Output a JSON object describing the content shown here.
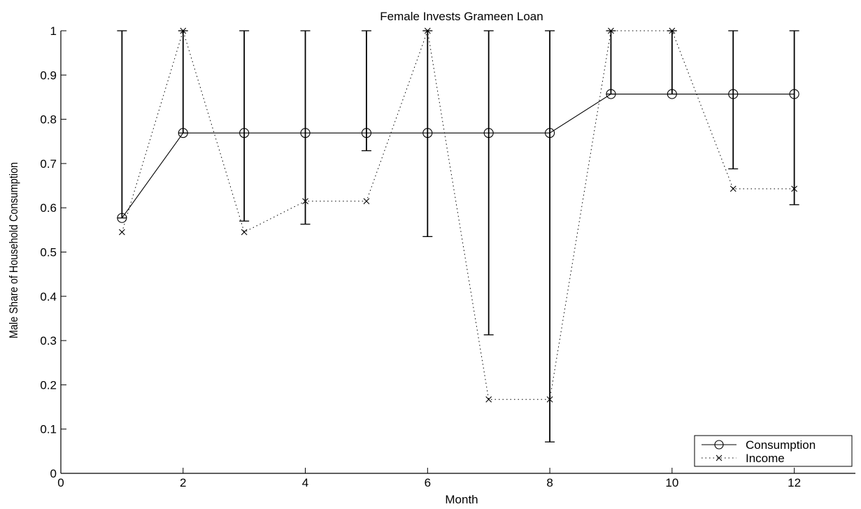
{
  "chart_data": {
    "type": "line",
    "title": "Female Invests Grameen Loan",
    "xlabel": "Month",
    "ylabel": "Male Share of Household Consumption",
    "xlim": [
      0,
      13
    ],
    "ylim": [
      0,
      1
    ],
    "xticks": [
      0,
      2,
      4,
      6,
      8,
      10,
      12
    ],
    "yticks": [
      0,
      0.1,
      0.2,
      0.3,
      0.4,
      0.5,
      0.6,
      0.7,
      0.8,
      0.9,
      1
    ],
    "xtick_labels": [
      "0",
      "2",
      "4",
      "6",
      "8",
      "10",
      "12"
    ],
    "ytick_labels": [
      "0",
      "0.1",
      "0.2",
      "0.3",
      "0.4",
      "0.5",
      "0.6",
      "0.7",
      "0.8",
      "0.9",
      "1"
    ],
    "grid": false,
    "legend_position": "bottom-right",
    "series": [
      {
        "name": "Consumption",
        "style": "solid",
        "marker": "circle",
        "color": "#000000",
        "x": [
          1,
          2,
          3,
          4,
          5,
          6,
          7,
          8,
          9,
          10,
          11,
          12
        ],
        "y": [
          0.577,
          0.769,
          0.769,
          0.769,
          0.769,
          0.769,
          0.769,
          0.769,
          0.857,
          0.857,
          0.857,
          0.857
        ],
        "error_low": [
          0.577,
          0.769,
          0.57,
          0.563,
          0.729,
          0.535,
          0.313,
          0.071,
          0.857,
          0.857,
          0.688,
          0.607
        ],
        "error_high": [
          1,
          1,
          1,
          1,
          1,
          1,
          1,
          1,
          1,
          1,
          1,
          1
        ]
      },
      {
        "name": "Income",
        "style": "dotted",
        "marker": "x",
        "color": "#000000",
        "x": [
          1,
          2,
          3,
          4,
          5,
          6,
          7,
          8,
          9,
          10,
          11,
          12
        ],
        "y": [
          0.545,
          1,
          0.545,
          0.615,
          0.615,
          1,
          0.167,
          0.167,
          1,
          1,
          0.643,
          0.643
        ]
      }
    ]
  }
}
